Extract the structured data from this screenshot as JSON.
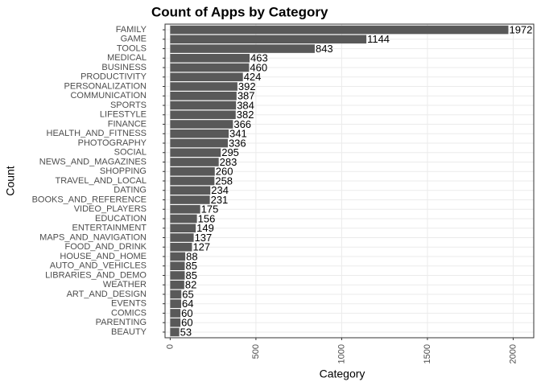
{
  "chart_data": {
    "type": "hbar",
    "title": "Count of Apps by Category",
    "x_label": "Category",
    "y_label": "Count",
    "categories": [
      "FAMILY",
      "GAME",
      "TOOLS",
      "MEDICAL",
      "BUSINESS",
      "PRODUCTIVITY",
      "PERSONALIZATION",
      "COMMUNICATION",
      "SPORTS",
      "LIFESTYLE",
      "FINANCE",
      "HEALTH_AND_FITNESS",
      "PHOTOGRAPHY",
      "SOCIAL",
      "NEWS_AND_MAGAZINES",
      "SHOPPING",
      "TRAVEL_AND_LOCAL",
      "DATING",
      "BOOKS_AND_REFERENCE",
      "VIDEO_PLAYERS",
      "EDUCATION",
      "ENTERTAINMENT",
      "MAPS_AND_NAVIGATION",
      "FOOD_AND_DRINK",
      "HOUSE_AND_HOME",
      "AUTO_AND_VEHICLES",
      "LIBRARIES_AND_DEMO",
      "WEATHER",
      "ART_AND_DESIGN",
      "EVENTS",
      "COMICS",
      "PARENTING",
      "BEAUTY"
    ],
    "values": [
      1972,
      1144,
      843,
      463,
      460,
      424,
      392,
      387,
      384,
      382,
      366,
      341,
      336,
      295,
      283,
      260,
      258,
      234,
      231,
      175,
      156,
      149,
      137,
      127,
      88,
      85,
      85,
      82,
      65,
      64,
      60,
      60,
      53
    ],
    "color": "#595959",
    "xlim": [
      -30,
      2120
    ],
    "xticks": [
      0,
      500,
      1000,
      1500,
      2000
    ],
    "grid": true
  }
}
